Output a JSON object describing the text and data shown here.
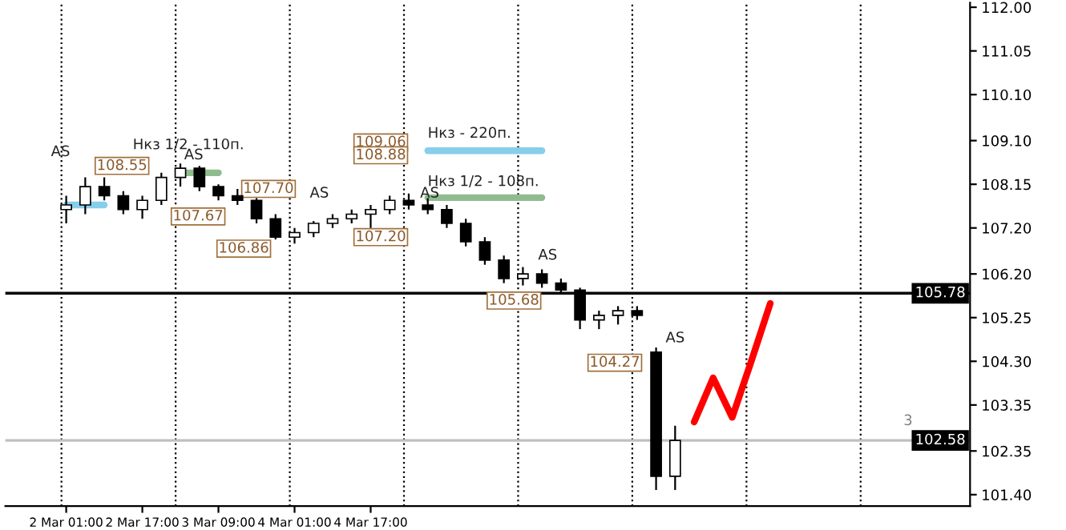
{
  "chart_data": {
    "type": "candlestick",
    "categories": [
      "2 Mar 01:00",
      null,
      null,
      null,
      "2 Mar 17:00",
      null,
      null,
      null,
      "3 Mar 09:00",
      null,
      null,
      null,
      "4 Mar 01:00",
      null,
      null,
      null,
      "4 Mar 17:00",
      null,
      null,
      null,
      null,
      null,
      null,
      null,
      null,
      null,
      null,
      null,
      null,
      null,
      null,
      null,
      null,
      null,
      null,
      null,
      null,
      null,
      null,
      null,
      null,
      null,
      null,
      null,
      null,
      null,
      null,
      null
    ],
    "ohlc": [
      [
        107.6,
        107.9,
        107.3,
        107.7
      ],
      [
        107.7,
        108.3,
        107.5,
        108.1
      ],
      [
        108.1,
        108.3,
        107.8,
        107.9
      ],
      [
        107.9,
        108.0,
        107.5,
        107.6
      ],
      [
        107.6,
        107.9,
        107.4,
        107.8
      ],
      [
        107.8,
        108.4,
        107.7,
        108.3
      ],
      [
        108.3,
        108.6,
        108.1,
        108.5
      ],
      [
        108.5,
        108.55,
        108.0,
        108.1
      ],
      [
        108.1,
        108.15,
        107.8,
        107.9
      ],
      [
        107.9,
        108.05,
        107.7,
        107.8
      ],
      [
        107.8,
        107.85,
        107.3,
        107.4
      ],
      [
        107.4,
        107.5,
        106.95,
        107.0
      ],
      [
        107.0,
        107.2,
        106.86,
        107.1
      ],
      [
        107.1,
        107.35,
        107.0,
        107.3
      ],
      [
        107.3,
        107.5,
        107.2,
        107.4
      ],
      [
        107.4,
        107.6,
        107.3,
        107.5
      ],
      [
        107.5,
        107.7,
        107.2,
        107.6
      ],
      [
        107.6,
        107.9,
        107.5,
        107.8
      ],
      [
        107.8,
        107.95,
        107.6,
        107.7
      ],
      [
        107.7,
        107.85,
        107.5,
        107.6
      ],
      [
        107.6,
        107.7,
        107.2,
        107.3
      ],
      [
        107.3,
        107.4,
        106.8,
        106.9
      ],
      [
        106.9,
        107.0,
        106.4,
        106.5
      ],
      [
        106.5,
        106.6,
        106.0,
        106.1
      ],
      [
        106.1,
        106.35,
        105.95,
        106.2
      ],
      [
        106.2,
        106.3,
        105.9,
        106.0
      ],
      [
        106.0,
        106.1,
        105.8,
        105.85
      ],
      [
        105.85,
        105.9,
        105.0,
        105.2
      ],
      [
        105.2,
        105.4,
        105.0,
        105.3
      ],
      [
        105.3,
        105.5,
        105.1,
        105.4
      ],
      [
        105.4,
        105.5,
        105.2,
        105.3
      ],
      [
        104.5,
        104.6,
        101.5,
        101.8
      ],
      [
        101.8,
        102.9,
        101.5,
        102.58
      ],
      null,
      null,
      null,
      null,
      null,
      null,
      null,
      null,
      null,
      null,
      null,
      null,
      null,
      null,
      null
    ],
    "series": [
      {
        "type": "line",
        "color": "#87ceeb",
        "values": [
          107.7,
          107.7,
          107.7,
          null,
          null,
          null,
          null,
          null,
          null,
          null,
          null,
          null,
          null,
          null,
          null,
          null,
          null,
          null,
          null,
          null,
          null,
          null,
          null,
          null,
          null,
          null,
          null,
          null,
          null,
          null,
          null,
          null,
          null,
          null,
          null,
          null,
          null,
          null,
          null,
          null,
          null,
          null,
          null,
          null,
          null,
          null,
          null,
          null
        ]
      },
      {
        "type": "line",
        "color": "#8fbc8f",
        "values": [
          null,
          null,
          null,
          null,
          null,
          null,
          108.4,
          108.4,
          108.4,
          null,
          null,
          null,
          null,
          null,
          null,
          null,
          null,
          null,
          null,
          null,
          null,
          null,
          null,
          null,
          null,
          null,
          null,
          null,
          null,
          null,
          null,
          null,
          null,
          null,
          null,
          null,
          null,
          null,
          null,
          null,
          null,
          null,
          null,
          null,
          null,
          null,
          null,
          null
        ]
      },
      {
        "type": "line",
        "color": "#87ceeb",
        "values": [
          null,
          null,
          null,
          null,
          null,
          null,
          null,
          null,
          null,
          null,
          null,
          null,
          null,
          null,
          null,
          null,
          null,
          null,
          null,
          108.88,
          108.88,
          108.88,
          108.88,
          108.88,
          108.88,
          108.88,
          null,
          null,
          null,
          null,
          null,
          null,
          null,
          null,
          null,
          null,
          null,
          null,
          null,
          null,
          null,
          null,
          null,
          null,
          null,
          null,
          null,
          null
        ]
      },
      {
        "type": "line",
        "color": "#8fbc8f",
        "values": [
          null,
          null,
          null,
          null,
          null,
          null,
          null,
          null,
          null,
          null,
          null,
          null,
          null,
          null,
          null,
          null,
          null,
          null,
          null,
          107.86,
          107.86,
          107.86,
          107.86,
          107.86,
          107.86,
          107.86,
          null,
          null,
          null,
          null,
          null,
          null,
          null,
          null,
          null,
          null,
          null,
          null,
          null,
          null,
          null,
          null,
          null,
          null,
          null,
          null,
          null,
          null
        ]
      },
      {
        "type": "line",
        "color": "#ff0000",
        "values": [
          null,
          null,
          null,
          null,
          null,
          null,
          null,
          null,
          null,
          null,
          null,
          null,
          null,
          null,
          null,
          null,
          null,
          null,
          null,
          null,
          null,
          null,
          null,
          null,
          null,
          null,
          null,
          null,
          null,
          null,
          null,
          null,
          null,
          102.98,
          103.94,
          103.08,
          104.3,
          105.56,
          null,
          null,
          null,
          null,
          null,
          null,
          null,
          null,
          null,
          null
        ]
      }
    ],
    "ylim": [
      101.15,
      112.1
    ],
    "yticks": [
      {
        "value": 112.0,
        "label": "112.00"
      },
      {
        "value": 111.05,
        "label": "111.05"
      },
      {
        "value": 110.1,
        "label": "110.10"
      },
      {
        "value": 109.1,
        "label": "109.10"
      },
      {
        "value": 108.15,
        "label": "108.15"
      },
      {
        "value": 107.2,
        "label": "107.20"
      },
      {
        "value": 106.2,
        "label": "106.20"
      },
      {
        "value": 105.25,
        "label": "105.25"
      },
      {
        "value": 104.3,
        "label": "104.30"
      },
      {
        "value": 103.35,
        "label": "103.35"
      },
      {
        "value": 102.35,
        "label": "102.35"
      },
      {
        "value": 101.4,
        "label": "101.40"
      }
    ],
    "ref_lines": [
      {
        "axis": "y",
        "value": 105.78,
        "label": "105.78",
        "color": "#000000"
      },
      {
        "axis": "y",
        "value": 102.58,
        "label": "102.58",
        "color": "#c0c0c0"
      }
    ],
    "annotations": [
      "AS",
      "Нкз 1/2 - 110п.",
      "AS",
      "108.55",
      "107.67",
      "107.70",
      "106.86",
      "AS",
      "109.06",
      "108.88",
      "Нкз - 220п.",
      "Нкз 1/2 - 108п.",
      "AS",
      "107.20",
      "105.68",
      "AS",
      "104.27",
      "AS",
      "3"
    ]
  }
}
